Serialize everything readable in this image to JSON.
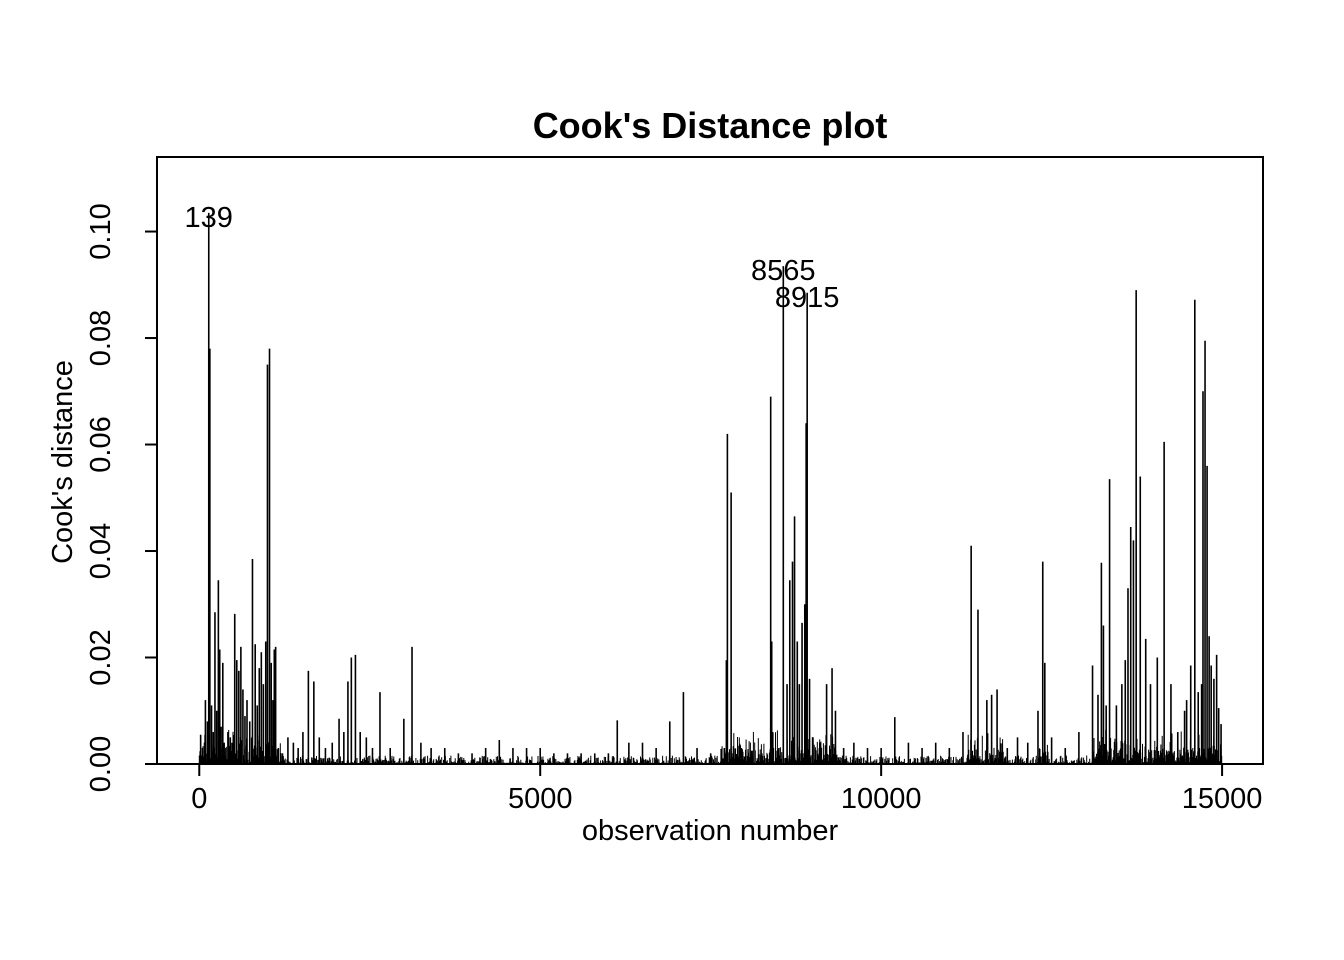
{
  "chart_data": {
    "type": "bar",
    "title": "Cook's Distance plot",
    "xlabel": "observation number",
    "ylabel": "Cook's distance",
    "xlim": [
      -620,
      15600
    ],
    "ylim": [
      0,
      0.114
    ],
    "xticks": [
      0,
      5000,
      10000,
      15000
    ],
    "yticks": [
      0.0,
      0.02,
      0.04,
      0.06,
      0.08,
      0.1
    ],
    "xtick_labels": [
      "0",
      "5000",
      "10000",
      "15000"
    ],
    "ytick_labels": [
      "0.00",
      "0.02",
      "0.04",
      "0.06",
      "0.08",
      "0.10"
    ],
    "grid": false,
    "n_observations": 15000,
    "labeled_points": [
      {
        "label": "139",
        "x": 139,
        "y": 0.1035
      },
      {
        "label": "8565",
        "x": 8565,
        "y": 0.0935
      },
      {
        "label": "8915",
        "x": 8915,
        "y": 0.0885
      }
    ],
    "x": [
      20,
      50,
      90,
      120,
      139,
      155,
      180,
      205,
      230,
      255,
      280,
      300,
      320,
      345,
      365,
      390,
      420,
      455,
      480,
      520,
      550,
      580,
      610,
      640,
      670,
      700,
      740,
      780,
      820,
      850,
      880,
      910,
      940,
      975,
      1000,
      1030,
      1055,
      1080,
      1100,
      1120,
      1160,
      1220,
      1300,
      1380,
      1450,
      1520,
      1600,
      1680,
      1760,
      1850,
      1950,
      2050,
      2120,
      2180,
      2230,
      2290,
      2360,
      2450,
      2540,
      2650,
      2800,
      3000,
      3120,
      3250,
      3400,
      3600,
      3800,
      4000,
      4200,
      4400,
      4600,
      4800,
      5000,
      5200,
      5400,
      5600,
      5800,
      6000,
      6130,
      6300,
      6500,
      6700,
      6900,
      7100,
      7300,
      7500,
      7700,
      7730,
      7745,
      7800,
      7950,
      8100,
      8250,
      8380,
      8395,
      8410,
      8500,
      8565,
      8620,
      8660,
      8700,
      8730,
      8770,
      8800,
      8840,
      8880,
      8900,
      8915,
      8950,
      9000,
      9100,
      9200,
      9280,
      9330,
      9450,
      9600,
      9800,
      10000,
      10200,
      10400,
      10600,
      10800,
      11000,
      11200,
      11320,
      11420,
      11550,
      11620,
      11700,
      11850,
      12000,
      12150,
      12300,
      12370,
      12400,
      12500,
      12700,
      12900,
      13100,
      13180,
      13230,
      13260,
      13300,
      13350,
      13450,
      13530,
      13580,
      13620,
      13660,
      13700,
      13740,
      13800,
      13880,
      13950,
      14050,
      14150,
      14250,
      14350,
      14450,
      14480,
      14540,
      14600,
      14650,
      14700,
      14720,
      14750,
      14780,
      14810,
      14840,
      14880,
      14920,
      14950,
      14985
    ],
    "values": [
      0.0055,
      0.003,
      0.012,
      0.008,
      0.1035,
      0.078,
      0.011,
      0.006,
      0.0285,
      0.01,
      0.0345,
      0.0215,
      0.007,
      0.019,
      0.004,
      0.003,
      0.006,
      0.005,
      0.004,
      0.0282,
      0.0195,
      0.0175,
      0.022,
      0.014,
      0.009,
      0.012,
      0.008,
      0.0385,
      0.0225,
      0.011,
      0.018,
      0.021,
      0.015,
      0.023,
      0.075,
      0.078,
      0.019,
      0.012,
      0.0215,
      0.022,
      0.003,
      0.002,
      0.005,
      0.004,
      0.003,
      0.006,
      0.0175,
      0.0155,
      0.005,
      0.003,
      0.004,
      0.0085,
      0.006,
      0.0155,
      0.02,
      0.0205,
      0.006,
      0.005,
      0.003,
      0.0135,
      0.003,
      0.0085,
      0.022,
      0.004,
      0.003,
      0.003,
      0.002,
      0.002,
      0.003,
      0.0045,
      0.003,
      0.003,
      0.003,
      0.002,
      0.002,
      0.002,
      0.002,
      0.002,
      0.0082,
      0.004,
      0.004,
      0.003,
      0.008,
      0.0135,
      0.003,
      0.002,
      0.003,
      0.0195,
      0.062,
      0.051,
      0.003,
      0.0025,
      0.002,
      0.069,
      0.023,
      0.006,
      0.003,
      0.0935,
      0.015,
      0.0345,
      0.038,
      0.0465,
      0.023,
      0.015,
      0.0265,
      0.03,
      0.064,
      0.0885,
      0.016,
      0.005,
      0.004,
      0.015,
      0.018,
      0.01,
      0.003,
      0.004,
      0.003,
      0.003,
      0.0088,
      0.004,
      0.003,
      0.004,
      0.003,
      0.006,
      0.041,
      0.029,
      0.012,
      0.013,
      0.014,
      0.003,
      0.005,
      0.004,
      0.01,
      0.038,
      0.019,
      0.005,
      0.003,
      0.006,
      0.0185,
      0.013,
      0.0378,
      0.026,
      0.011,
      0.0535,
      0.011,
      0.015,
      0.0195,
      0.033,
      0.0445,
      0.042,
      0.089,
      0.054,
      0.0235,
      0.015,
      0.02,
      0.0605,
      0.015,
      0.006,
      0.01,
      0.012,
      0.0185,
      0.0872,
      0.0135,
      0.015,
      0.07,
      0.0795,
      0.056,
      0.024,
      0.0185,
      0.016,
      0.0205,
      0.0105,
      0.0075
    ]
  }
}
